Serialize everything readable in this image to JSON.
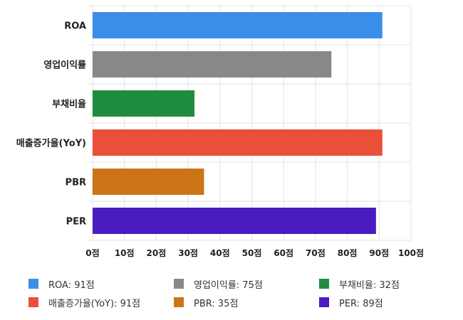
{
  "chart_data": {
    "type": "bar",
    "orientation": "horizontal",
    "categories": [
      "ROA",
      "영업이익률",
      "부채비율",
      "매출증가율(YoY)",
      "PBR",
      "PER"
    ],
    "values": [
      91,
      75,
      32,
      91,
      35,
      89
    ],
    "colors": [
      "#3b8ee8",
      "#888888",
      "#1e8e3e",
      "#ea4f3a",
      "#cc7518",
      "#4a1bbf"
    ],
    "xlim": [
      0,
      100
    ],
    "x_ticks": [
      0,
      10,
      20,
      30,
      40,
      50,
      60,
      70,
      80,
      90,
      100
    ],
    "x_tick_labels": [
      "0점",
      "10점",
      "20점",
      "30점",
      "40점",
      "50점",
      "60점",
      "70점",
      "80점",
      "90점",
      "100점"
    ],
    "grid": true,
    "legend_position": "bottom",
    "legend": [
      {
        "label": "ROA: 91점",
        "color": "#3b8ee8"
      },
      {
        "label": "영업이익률: 75점",
        "color": "#888888"
      },
      {
        "label": "부채비율: 32점",
        "color": "#1e8e3e"
      },
      {
        "label": "매출증가율(YoY): 91점",
        "color": "#ea4f3a"
      },
      {
        "label": "PBR: 35점",
        "color": "#cc7518"
      },
      {
        "label": "PER: 89점",
        "color": "#4a1bbf"
      }
    ]
  }
}
